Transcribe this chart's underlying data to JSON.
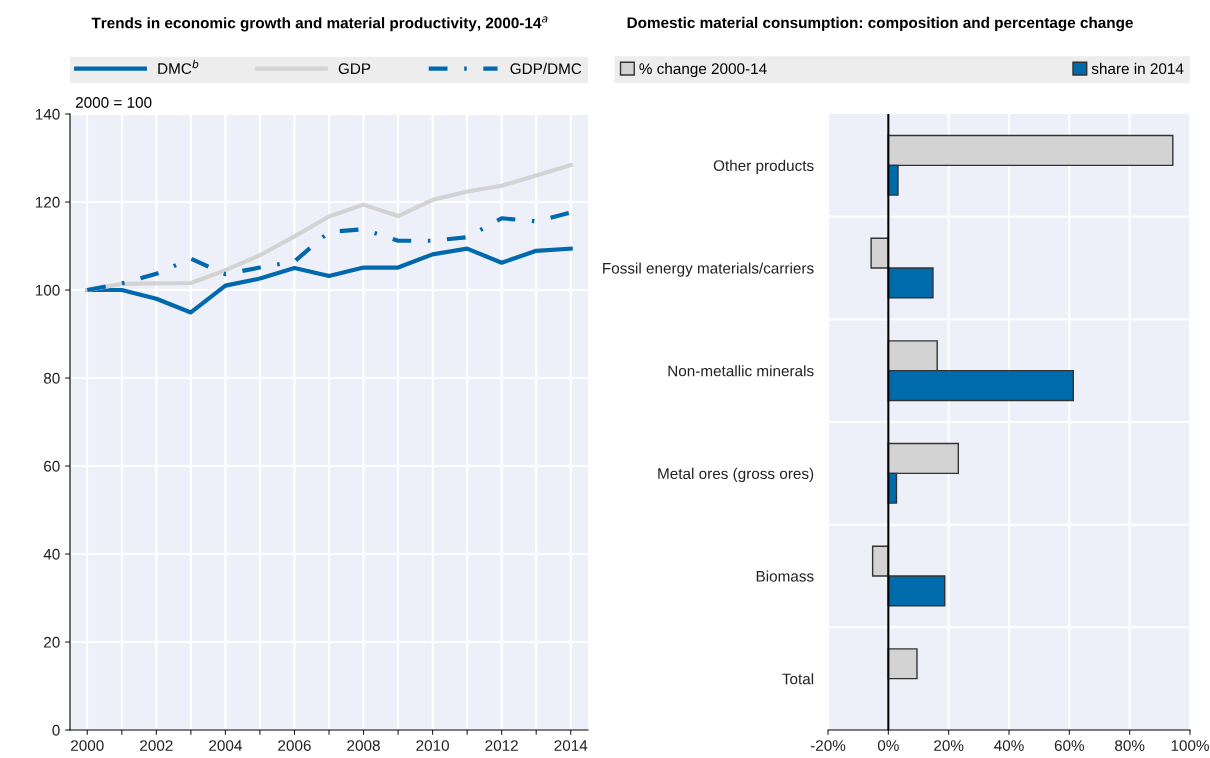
{
  "chart_data": [
    {
      "type": "line",
      "title": "Trends in economic growth and material productivity, 2000-14$^{a}$",
      "x": [
        2000,
        2001,
        2002,
        2003,
        2004,
        2005,
        2006,
        2007,
        2008,
        2009,
        2010,
        2011,
        2012,
        2013,
        2014
      ],
      "series": [
        {
          "name": "DMC$^{b}$",
          "color": "#0068ad",
          "line_style": "solid",
          "values": [
            100,
            100,
            98,
            94.9,
            101,
            102.6,
            105,
            103.2,
            105.1,
            105.1,
            108.1,
            109.4,
            106.2,
            108.9,
            109.4
          ]
        },
        {
          "name": "GDP",
          "color": "#d3d3d3",
          "line_style": "solid",
          "values": [
            100,
            101.4,
            101.5,
            101.6,
            104.5,
            107.9,
            112.2,
            116.7,
            119.4,
            116.8,
            120.5,
            122.4,
            123.7,
            126,
            128.4
          ]
        },
        {
          "name": "GDP/DMC",
          "color": "#0068ad",
          "line_style": "dashdot",
          "values": [
            100,
            101.5,
            103.7,
            107.1,
            103.6,
            105.1,
            106.5,
            113.2,
            113.8,
            111.2,
            111.2,
            112,
            116.3,
            115.6,
            117.6
          ]
        }
      ],
      "xlim": [
        1999.5,
        2014.5
      ],
      "ylim": [
        0,
        140
      ],
      "xticks": [
        2000,
        {
          "value": 2001,
          "label": null
        },
        2002,
        {
          "value": 2003,
          "label": null
        },
        2004,
        {
          "value": 2005,
          "label": null
        },
        2006,
        {
          "value": 2007,
          "label": null
        },
        2008,
        {
          "value": 2009,
          "label": null
        },
        2010,
        {
          "value": 2011,
          "label": null
        },
        2012,
        {
          "value": 2013,
          "label": null
        },
        2014
      ],
      "yticks": [
        0,
        20,
        40,
        60,
        80,
        100,
        120,
        140
      ],
      "annotations": [
        "2000 = 100"
      ],
      "grid": true,
      "legend": "top",
      "marker": "none"
    },
    {
      "type": "bar",
      "orientation": "horizontal",
      "title": "Domestic material consumption: composition and percentage change",
      "categories": [
        "Other products",
        "Fossil energy materials/carriers",
        "Non-metallic minerals",
        "Metal ores (gross ores)",
        "Biomass",
        "Total"
      ],
      "series": [
        {
          "name": "% change 2000-14",
          "color": "#d3d3d3",
          "values": [
            94.3,
            -5.7,
            16.2,
            23.2,
            -5.2,
            9.5
          ]
        },
        {
          "name": "share in 2014",
          "color": "#006bac",
          "values": [
            3.2,
            14.8,
            61.3,
            2.7,
            18.7,
            null
          ]
        }
      ],
      "xlim": [
        -20,
        100
      ],
      "xticks": [
        {
          "value": -20,
          "label": "-20%"
        },
        {
          "value": 0,
          "label": "0%"
        },
        {
          "value": 20,
          "label": "20%"
        },
        {
          "value": 40,
          "label": "40%"
        },
        {
          "value": 60,
          "label": "60%"
        },
        {
          "value": 80,
          "label": "80%"
        },
        {
          "value": 100,
          "label": "100%"
        }
      ],
      "grid": true,
      "legend": "top"
    }
  ]
}
